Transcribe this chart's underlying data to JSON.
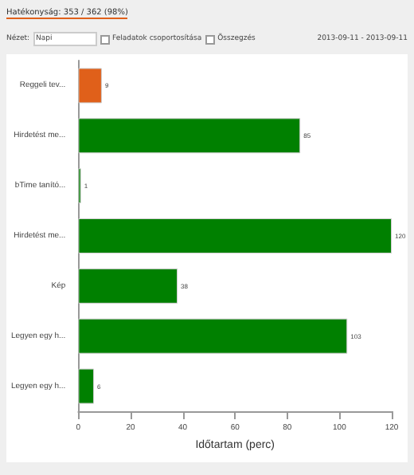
{
  "chart_data": {
    "type": "bar",
    "orientation": "horizontal",
    "title": "Hatékonyság: 353 / 362 (98%)",
    "annotations": [
      "Nézet:",
      "Napi",
      "Feladatok csoportosítása",
      "Összegzés",
      "2013-09-11 - 2013-09-11"
    ],
    "xlabel": "Időtartam (perc)",
    "categories": [
      "Reggeli tev...",
      "Hirdetést me...",
      "bTime tanító...",
      "Hirdetést me...",
      "Kép",
      "Legyen egy h...",
      "Legyen egy h..."
    ],
    "values": [
      9,
      85,
      1,
      120,
      38,
      103,
      6
    ],
    "colors": [
      "#e0601a",
      "#008000",
      "#008000",
      "#008000",
      "#008000",
      "#008000",
      "#008000"
    ],
    "xlim": [
      0,
      120
    ],
    "xticks": [
      0,
      20,
      40,
      60,
      80,
      100,
      120
    ],
    "data_labels": true,
    "grid": false
  }
}
